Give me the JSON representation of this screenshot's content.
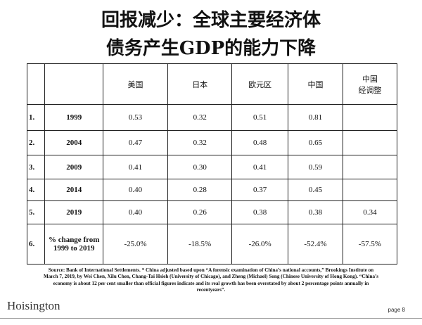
{
  "header": {
    "title_lines": [
      "回报减少：全球主要经济体",
      "债务产生GDP的能力下降"
    ]
  },
  "table": {
    "columns": [
      null,
      null,
      [
        "美国"
      ],
      [
        "日本"
      ],
      [
        "欧元区"
      ],
      [
        "中国"
      ],
      [
        "中国",
        "经调整"
      ]
    ],
    "rows": [
      [
        "1.",
        "1999",
        "0.53",
        "0.32",
        "0.51",
        "0.81",
        null
      ],
      [
        "2.",
        "2004",
        "0.47",
        "0.32",
        "0.48",
        "0.65",
        null
      ],
      [
        "3.",
        "2009",
        "0.41",
        "0.30",
        "0.41",
        "0.59",
        null
      ],
      [
        "4.",
        "2014",
        "0.40",
        "0.28",
        "0.37",
        "0.45",
        null
      ],
      [
        "5.",
        "2019",
        "0.40",
        "0.26",
        "0.38",
        "0.38",
        "0.34"
      ],
      [
        "6.",
        "% change from 1999 to 2019",
        "-25.0%",
        "-18.5%",
        "-26.0%",
        "-52.4%",
        "-57.5%"
      ]
    ]
  },
  "source": "Source: Bank of International Settlements. * China adjusted based upon “A forensic examination of China’s national accounts,” Brookings Institute on March 7, 2019, by Wei Chen, Xilu Chen, Chang-Tai Hsieh (University of Chicago), and Zheng (Michael) Song (Chinese University of Hong Kong). “China’s economy is about 12 per cent smaller than official figures indicate and its real growth has been overstated by about 2 percentage points annually in recentyears”.",
  "footer": {
    "logo": "Hoisington",
    "page": "page 8"
  }
}
